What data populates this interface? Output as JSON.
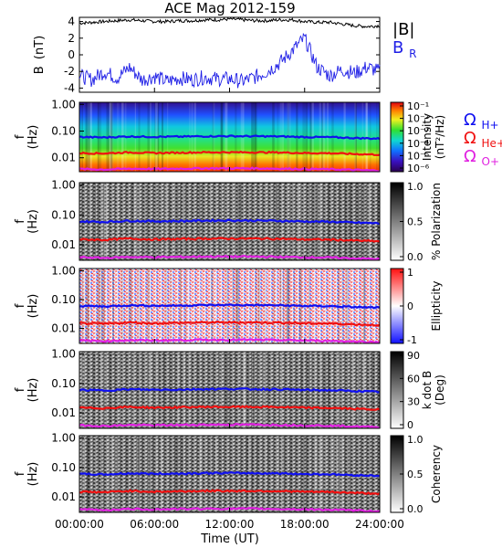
{
  "title": "ACE Mag 2012-159",
  "x_axis": {
    "label": "Time (UT)",
    "ticks": [
      "00:00:00",
      "06:00:00",
      "12:00:00",
      "18:00:00",
      "24:00:00"
    ],
    "tick_hours": [
      0,
      6,
      12,
      18,
      24
    ],
    "range_hours": [
      0,
      24
    ]
  },
  "panels": {
    "b_field": {
      "ylabel_main": "B",
      "ylabel_unit": "(nT)",
      "legend_b": "|B|",
      "legend_br_main": "B",
      "legend_br_sub": "R"
    },
    "freq_ylabel_main": "f",
    "freq_ylabel_unit": "(Hz)",
    "gyro_legend": {
      "symbol": "Ω",
      "h": "H+",
      "he": "He+",
      "o": "O+"
    },
    "intensity": {
      "cbar_label_1": "Intensity",
      "cbar_label_2": "(nT²/Hz)"
    },
    "polarization": {
      "cbar_label_1": "% Polarization"
    },
    "ellipticity": {
      "cbar_label_1": "Ellipticity"
    },
    "kdotb": {
      "cbar_label_1": "k dot B",
      "cbar_label_2": "(Deg)"
    },
    "coherency": {
      "cbar_label_1": "Coherency"
    }
  },
  "colors": {
    "b_total": "#000000",
    "b_radial": "#1f1fe6",
    "h_gyro": "#1010f0",
    "he_gyro": "#f01010",
    "o_gyro": "#e020e0"
  },
  "chart_data": [
    {
      "type": "line",
      "name": "b_field",
      "ylim": [
        -4.5,
        4.5
      ],
      "yticks": [
        4,
        2,
        0,
        -2,
        -4
      ],
      "yticklabels": [
        "4",
        "2",
        "0",
        "-2",
        "-4"
      ],
      "x_hours": [
        0,
        1,
        2,
        3,
        4,
        5,
        6,
        7,
        8,
        9,
        10,
        11,
        12,
        13,
        14,
        15,
        16,
        17,
        18,
        19,
        20,
        21,
        22,
        23,
        24
      ],
      "series": [
        {
          "name": "|B|",
          "values": [
            3.8,
            3.9,
            4.0,
            4.1,
            4.2,
            4.1,
            4.0,
            4.0,
            4.1,
            4.1,
            4.2,
            4.2,
            4.3,
            4.2,
            4.1,
            4.1,
            4.2,
            4.2,
            4.0,
            3.9,
            3.9,
            3.7,
            3.5,
            3.4,
            3.5
          ]
        },
        {
          "name": "B_R",
          "values": [
            -2.5,
            -3.0,
            -2.0,
            -2.8,
            -1.5,
            -3.0,
            -2.6,
            -3.2,
            -2.8,
            -3.0,
            -2.7,
            -2.9,
            -2.9,
            -3.2,
            -2.7,
            -2.0,
            -1.0,
            0.5,
            2.0,
            -1.5,
            -2.5,
            -1.8,
            -2.2,
            -1.5,
            -2.0
          ]
        }
      ]
    },
    {
      "type": "heatmap",
      "name": "intensity",
      "ylim": [
        0.003,
        1.2
      ],
      "yscale": "log",
      "yticklabels": [
        "1.00",
        "0.10",
        "0.01"
      ],
      "colorbar_ticks": [
        "10⁻¹",
        "10⁻²",
        "10⁻³",
        "10⁻⁴",
        "10⁻⁵",
        "10⁻⁶"
      ]
    },
    {
      "type": "heatmap",
      "name": "polarization",
      "ylim": [
        0.003,
        1.2
      ],
      "yscale": "log",
      "yticklabels": [
        "1.00",
        "0.10",
        "0.01"
      ],
      "colorbar_ticks": [
        "1.0",
        "0.5",
        "0.0"
      ]
    },
    {
      "type": "heatmap",
      "name": "ellipticity",
      "ylim": [
        0.003,
        1.2
      ],
      "yscale": "log",
      "yticklabels": [
        "1.00",
        "0.10",
        "0.01"
      ],
      "colorbar_ticks": [
        "1",
        "0",
        "-1"
      ]
    },
    {
      "type": "heatmap",
      "name": "kdotb",
      "ylim": [
        0.003,
        1.2
      ],
      "yscale": "log",
      "yticklabels": [
        "1.00",
        "0.10",
        "0.01"
      ],
      "colorbar_ticks": [
        "90",
        "60",
        "30",
        "0"
      ]
    },
    {
      "type": "heatmap",
      "name": "coherency",
      "ylim": [
        0.003,
        1.2
      ],
      "yscale": "log",
      "yticklabels": [
        "1.00",
        "0.10",
        "0.01"
      ],
      "colorbar_ticks": [
        "1.0",
        "0.5",
        "0.0"
      ]
    },
    {
      "type": "line",
      "name": "gyrofrequencies",
      "x_hours": [
        0,
        2,
        4,
        6,
        8,
        10,
        12,
        14,
        16,
        18,
        20,
        22,
        24
      ],
      "series": [
        {
          "name": "H+",
          "values": [
            0.06,
            0.058,
            0.063,
            0.061,
            0.062,
            0.064,
            0.065,
            0.064,
            0.063,
            0.06,
            0.059,
            0.055,
            0.052
          ]
        },
        {
          "name": "He+",
          "values": [
            0.015,
            0.0145,
            0.016,
            0.015,
            0.0155,
            0.016,
            0.016,
            0.016,
            0.0158,
            0.015,
            0.0148,
            0.0138,
            0.013
          ]
        },
        {
          "name": "O+",
          "values": [
            0.0038,
            0.0036,
            0.0039,
            0.0038,
            0.0039,
            0.004,
            0.004,
            0.004,
            0.0039,
            0.0038,
            0.0037,
            0.0035,
            0.0033
          ]
        }
      ]
    }
  ]
}
